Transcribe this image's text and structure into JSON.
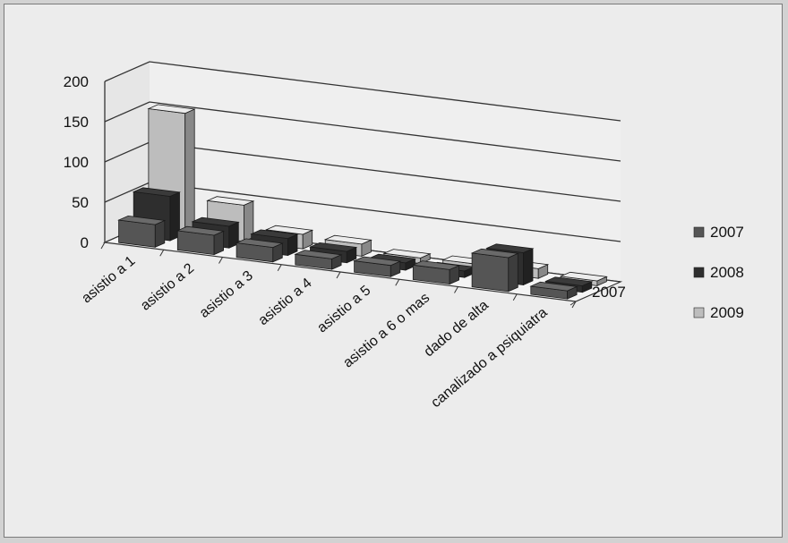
{
  "chart_data": {
    "type": "bar",
    "subtype": "3d-column",
    "title": "",
    "xlabel": "",
    "ylabel": "",
    "ylim": [
      0,
      200
    ],
    "yticks": [
      0,
      50,
      100,
      150,
      200
    ],
    "grid": true,
    "legend_position": "right",
    "depth_axis_label": "2007",
    "categories": [
      "asistio a 1",
      "asistio  a 2",
      "asistio a 3",
      "asistio a 4",
      "asistio a 5",
      "asistio a 6 o mas",
      "dado de alta",
      "canalizado a psiquiatra"
    ],
    "series": [
      {
        "name": "2007",
        "values": [
          28,
          24,
          18,
          13,
          14,
          18,
          42,
          10
        ]
      },
      {
        "name": "2008",
        "values": [
          55,
          27,
          21,
          14,
          9,
          8,
          40,
          8
        ]
      },
      {
        "name": "2009",
        "values": [
          150,
          45,
          18,
          15,
          7,
          8,
          12,
          6
        ]
      }
    ],
    "colors": {
      "2007": "#555555",
      "2008": "#2e2e2e",
      "2009": "#bdbdbd"
    }
  }
}
